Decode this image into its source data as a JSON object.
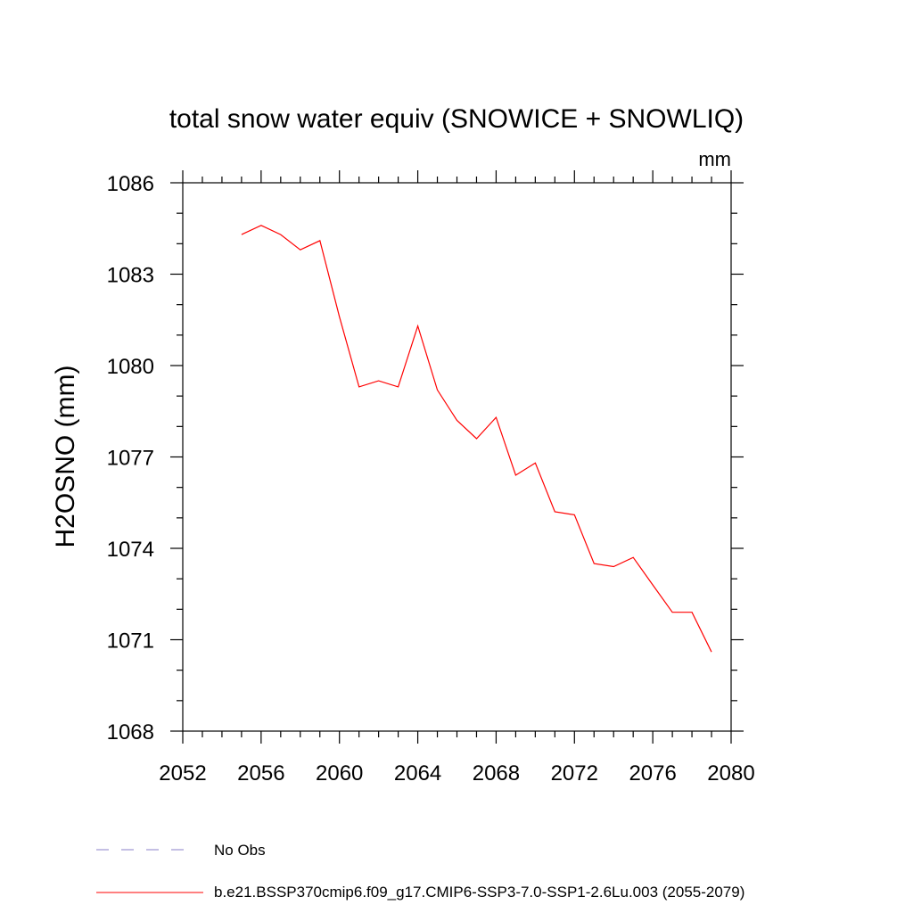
{
  "chart_data": {
    "type": "line",
    "title": "total snow water equiv (SNOWICE + SNOWLIQ)",
    "units": "mm",
    "xlabel": "",
    "ylabel": "H2OSNO  (mm)",
    "xlim": [
      2052,
      2080
    ],
    "ylim": [
      1068,
      1086
    ],
    "x_ticks": [
      2052,
      2056,
      2060,
      2064,
      2068,
      2072,
      2076,
      2080
    ],
    "y_ticks": [
      1068,
      1071,
      1074,
      1077,
      1080,
      1083,
      1086
    ],
    "grid": false,
    "series": [
      {
        "name": "b.e21.BSSP370cmip6.f09_g17.CMIP6-SSP3-7.0-SSP1-2.6Lu.003 (2055-2079)",
        "color": "#ff0000",
        "style": "solid",
        "x": [
          2055,
          2056,
          2057,
          2058,
          2059,
          2060,
          2061,
          2062,
          2063,
          2064,
          2065,
          2066,
          2067,
          2068,
          2069,
          2070,
          2071,
          2072,
          2073,
          2074,
          2075,
          2076,
          2077,
          2078,
          2079
        ],
        "y": [
          1084.3,
          1084.6,
          1084.3,
          1083.8,
          1084.1,
          1081.6,
          1079.3,
          1079.5,
          1079.3,
          1081.3,
          1079.2,
          1078.2,
          1077.6,
          1078.3,
          1076.4,
          1076.8,
          1075.2,
          1075.1,
          1073.5,
          1073.4,
          1073.7,
          1072.8,
          1071.9,
          1071.9,
          1070.6
        ]
      }
    ],
    "legend": [
      {
        "label": "No Obs",
        "color": "#8a7fc8",
        "style": "dashed"
      },
      {
        "label": "b.e21.BSSP370cmip6.f09_g17.CMIP6-SSP3-7.0-SSP1-2.6Lu.003 (2055-2079)",
        "color": "#ff0000",
        "style": "solid"
      }
    ]
  }
}
